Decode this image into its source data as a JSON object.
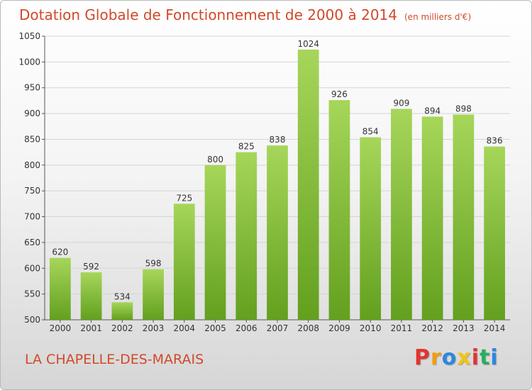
{
  "header": {
    "title": "Dotation Globale de Fonctionnement de 2000 à 2014",
    "unit_note": "(en milliers d'€)"
  },
  "footer": {
    "commune": "LA CHAPELLE-DES-MARAIS",
    "brand_letters": [
      "P",
      "r",
      "o",
      "x",
      "i",
      "t",
      "i"
    ],
    "brand_colors": [
      "#e3342f",
      "#f39c12",
      "#2e86de",
      "#f1c40f",
      "#e3342f",
      "#27ae60",
      "#2e86de"
    ]
  },
  "colors": {
    "bar_light": "#a6d65a",
    "bar_dark": "#63a01e",
    "title": "#d0492a"
  },
  "chart_data": {
    "type": "bar",
    "title": "Dotation Globale de Fonctionnement de 2000 à 2014",
    "xlabel": "",
    "ylabel": "",
    "categories": [
      "2000",
      "2001",
      "2002",
      "2003",
      "2004",
      "2005",
      "2006",
      "2007",
      "2008",
      "2009",
      "2010",
      "2011",
      "2012",
      "2013",
      "2014"
    ],
    "values": [
      620,
      592,
      534,
      598,
      725,
      800,
      825,
      838,
      1024,
      926,
      854,
      909,
      894,
      898,
      836
    ],
    "ylim": [
      500,
      1050
    ],
    "yticks": [
      500,
      550,
      600,
      650,
      700,
      750,
      800,
      850,
      900,
      950,
      1000,
      1050
    ],
    "grid": true,
    "legend": "none"
  }
}
